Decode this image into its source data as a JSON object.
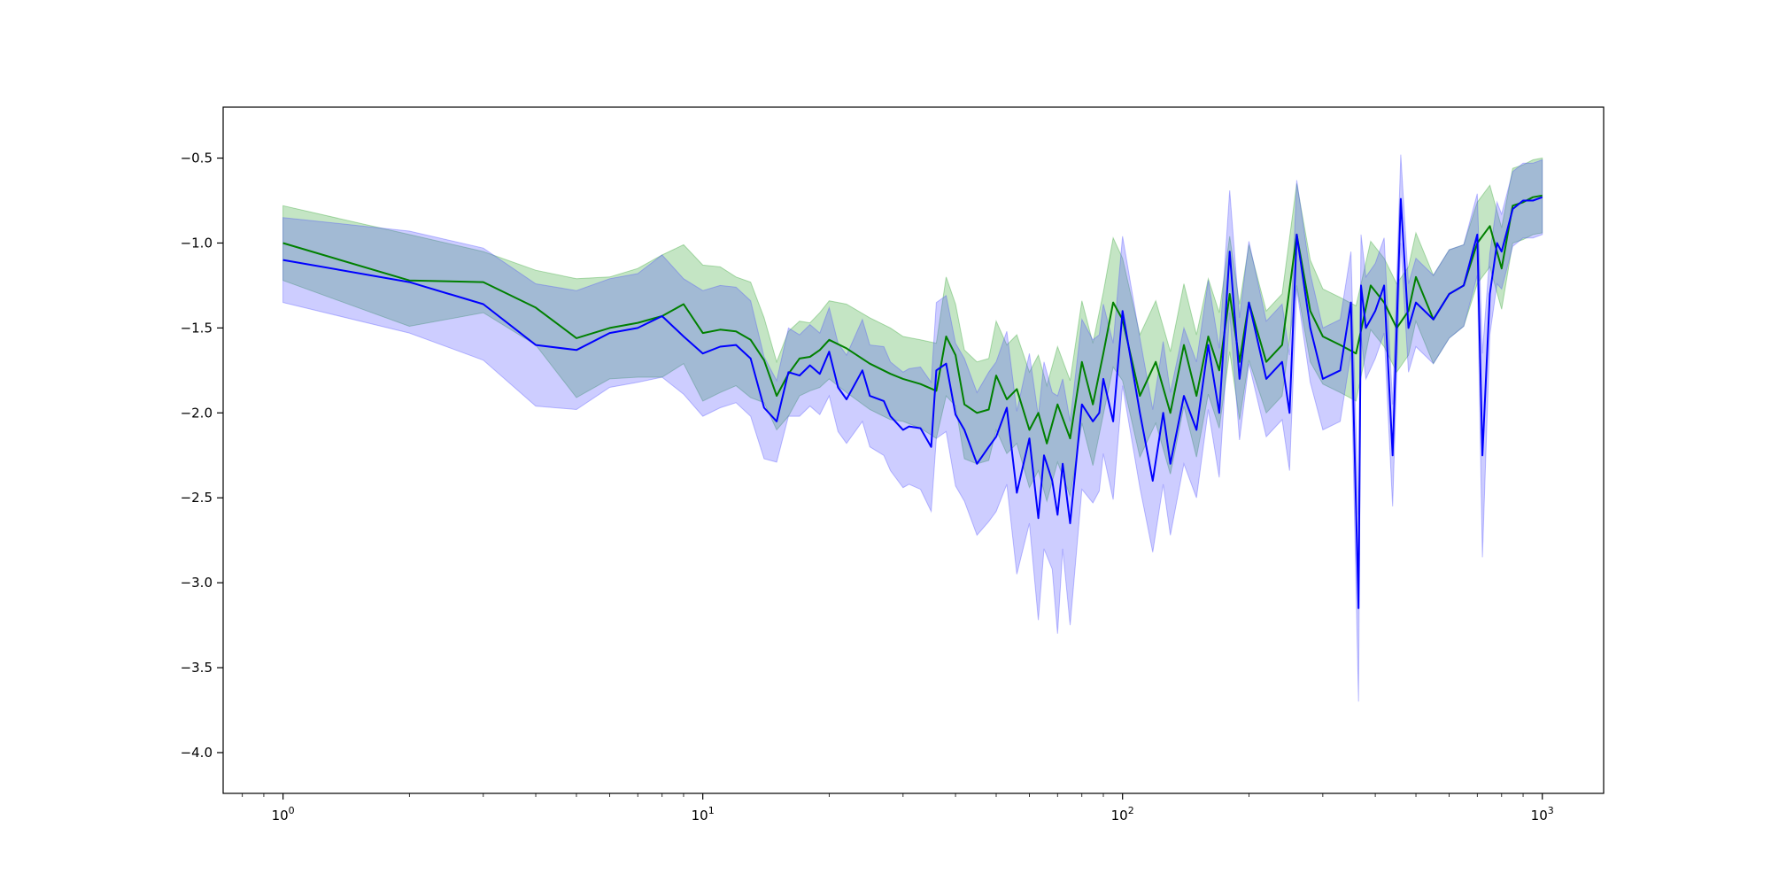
{
  "chart_data": {
    "type": "line",
    "title": "",
    "xlabel": "",
    "ylabel": "",
    "xscale": "log",
    "xlim": [
      0.72,
      1400
    ],
    "ylim": [
      -4.24,
      -0.2
    ],
    "grid": false,
    "legend": "none",
    "x_ticks": [
      {
        "value": 1,
        "base": "10",
        "exp": "0"
      },
      {
        "value": 10,
        "base": "10",
        "exp": "1"
      },
      {
        "value": 100,
        "base": "10",
        "exp": "2"
      },
      {
        "value": 1000,
        "base": "10",
        "exp": "3"
      }
    ],
    "y_ticks": [
      {
        "value": -0.5,
        "label": "−0.5"
      },
      {
        "value": -1.0,
        "label": "−1.0"
      },
      {
        "value": -1.5,
        "label": "−1.5"
      },
      {
        "value": -2.0,
        "label": "−2.0"
      },
      {
        "value": -2.5,
        "label": "−2.5"
      },
      {
        "value": -3.0,
        "label": "−3.0"
      },
      {
        "value": -3.5,
        "label": "−3.5"
      },
      {
        "value": -4.0,
        "label": "−4.0"
      }
    ],
    "series": [
      {
        "color": "#008000",
        "band_color": "#2ca02c",
        "x": [
          1,
          2,
          3,
          4,
          5,
          6,
          7,
          8,
          9,
          10,
          11,
          12,
          13,
          14,
          15,
          16,
          17,
          18,
          19,
          20,
          22,
          25,
          28,
          30,
          33,
          36,
          38,
          40,
          42,
          45,
          48,
          50,
          53,
          56,
          60,
          63,
          66,
          70,
          75,
          80,
          85,
          90,
          95,
          100,
          110,
          120,
          130,
          140,
          150,
          160,
          170,
          180,
          190,
          200,
          220,
          240,
          260,
          280,
          300,
          330,
          360,
          390,
          420,
          450,
          480,
          500,
          550,
          600,
          650,
          700,
          750,
          800,
          850,
          900,
          950,
          1000
        ],
        "y": [
          -1.0,
          -1.22,
          -1.23,
          -1.38,
          -1.56,
          -1.5,
          -1.47,
          -1.43,
          -1.36,
          -1.53,
          -1.51,
          -1.52,
          -1.57,
          -1.69,
          -1.9,
          -1.77,
          -1.68,
          -1.67,
          -1.63,
          -1.57,
          -1.62,
          -1.71,
          -1.77,
          -1.8,
          -1.83,
          -1.87,
          -1.55,
          -1.66,
          -1.95,
          -2.0,
          -1.98,
          -1.78,
          -1.92,
          -1.86,
          -2.1,
          -2.0,
          -2.18,
          -1.95,
          -2.15,
          -1.7,
          -1.95,
          -1.65,
          -1.35,
          -1.45,
          -1.9,
          -1.7,
          -2.0,
          -1.6,
          -1.9,
          -1.55,
          -1.75,
          -1.3,
          -1.7,
          -1.35,
          -1.7,
          -1.6,
          -0.95,
          -1.4,
          -1.55,
          -1.6,
          -1.65,
          -1.25,
          -1.35,
          -1.5,
          -1.4,
          -1.2,
          -1.45,
          -1.3,
          -1.25,
          -1.0,
          -0.9,
          -1.15,
          -0.78,
          -0.76,
          -0.73,
          -0.72
        ],
        "band_half_width": [
          0.22,
          0.27,
          0.18,
          0.22,
          0.35,
          0.3,
          0.32,
          0.36,
          0.35,
          0.4,
          0.37,
          0.32,
          0.34,
          0.25,
          0.2,
          0.25,
          0.22,
          0.2,
          0.22,
          0.23,
          0.26,
          0.27,
          0.27,
          0.25,
          0.26,
          0.28,
          0.35,
          0.3,
          0.32,
          0.3,
          0.3,
          0.32,
          0.32,
          0.32,
          0.34,
          0.34,
          0.34,
          0.34,
          0.34,
          0.36,
          0.36,
          0.36,
          0.38,
          0.36,
          0.36,
          0.36,
          0.36,
          0.36,
          0.36,
          0.34,
          0.34,
          0.34,
          0.34,
          0.34,
          0.3,
          0.3,
          0.3,
          0.3,
          0.28,
          0.28,
          0.28,
          0.26,
          0.26,
          0.26,
          0.26,
          0.26,
          0.26,
          0.26,
          0.24,
          0.24,
          0.24,
          0.24,
          0.22,
          0.22,
          0.22,
          0.22
        ]
      },
      {
        "color": "#0000ff",
        "band_color": "#4b4bff",
        "x": [
          1,
          2,
          3,
          4,
          5,
          6,
          7,
          8,
          9,
          10,
          11,
          12,
          13,
          14,
          15,
          16,
          17,
          18,
          19,
          20,
          21,
          22,
          24,
          25,
          27,
          28,
          30,
          31,
          33,
          35,
          36,
          38,
          40,
          42,
          45,
          48,
          50,
          53,
          56,
          60,
          63,
          65,
          68,
          70,
          72,
          75,
          80,
          85,
          88,
          90,
          95,
          100,
          110,
          118,
          125,
          130,
          140,
          150,
          160,
          170,
          180,
          190,
          200,
          220,
          240,
          250,
          260,
          280,
          300,
          330,
          350,
          365,
          370,
          380,
          400,
          420,
          440,
          450,
          460,
          480,
          500,
          550,
          600,
          650,
          700,
          720,
          750,
          780,
          800,
          850,
          900,
          950,
          1000
        ],
        "y": [
          -1.1,
          -1.23,
          -1.36,
          -1.6,
          -1.63,
          -1.53,
          -1.5,
          -1.43,
          -1.55,
          -1.65,
          -1.61,
          -1.6,
          -1.68,
          -1.97,
          -2.05,
          -1.76,
          -1.78,
          -1.72,
          -1.77,
          -1.64,
          -1.85,
          -1.92,
          -1.75,
          -1.9,
          -1.93,
          -2.02,
          -2.1,
          -2.08,
          -2.09,
          -2.2,
          -1.75,
          -1.71,
          -2.01,
          -2.1,
          -2.3,
          -2.2,
          -2.14,
          -1.97,
          -2.47,
          -2.15,
          -2.62,
          -2.25,
          -2.4,
          -2.6,
          -2.3,
          -2.65,
          -1.95,
          -2.05,
          -2.0,
          -1.8,
          -2.05,
          -1.4,
          -2.0,
          -2.4,
          -2.0,
          -2.3,
          -1.9,
          -2.1,
          -1.6,
          -2.0,
          -1.05,
          -1.8,
          -1.35,
          -1.8,
          -1.7,
          -2.0,
          -0.95,
          -1.5,
          -1.8,
          -1.75,
          -1.35,
          -3.15,
          -1.25,
          -1.5,
          -1.4,
          -1.25,
          -2.25,
          -1.5,
          -0.74,
          -1.5,
          -1.35,
          -1.45,
          -1.3,
          -1.25,
          -0.95,
          -2.25,
          -1.3,
          -1.0,
          -1.05,
          -0.8,
          -0.75,
          -0.75,
          -0.73
        ],
        "band_half_width": [
          0.25,
          0.3,
          0.33,
          0.36,
          0.35,
          0.32,
          0.32,
          0.36,
          0.34,
          0.37,
          0.36,
          0.34,
          0.34,
          0.3,
          0.24,
          0.26,
          0.24,
          0.24,
          0.24,
          0.26,
          0.26,
          0.26,
          0.3,
          0.3,
          0.32,
          0.32,
          0.34,
          0.34,
          0.36,
          0.38,
          0.4,
          0.4,
          0.42,
          0.42,
          0.42,
          0.44,
          0.44,
          0.45,
          0.48,
          0.5,
          0.6,
          0.55,
          0.52,
          0.7,
          0.5,
          0.6,
          0.5,
          0.48,
          0.46,
          0.44,
          0.46,
          0.44,
          0.44,
          0.42,
          0.42,
          0.42,
          0.4,
          0.4,
          0.38,
          0.38,
          0.36,
          0.36,
          0.36,
          0.34,
          0.34,
          0.34,
          0.32,
          0.32,
          0.3,
          0.3,
          0.3,
          0.55,
          0.3,
          0.3,
          0.28,
          0.28,
          0.3,
          0.28,
          0.26,
          0.26,
          0.26,
          0.26,
          0.26,
          0.24,
          0.24,
          0.6,
          0.24,
          0.24,
          0.22,
          0.22,
          0.22,
          0.22,
          0.22
        ]
      }
    ]
  }
}
